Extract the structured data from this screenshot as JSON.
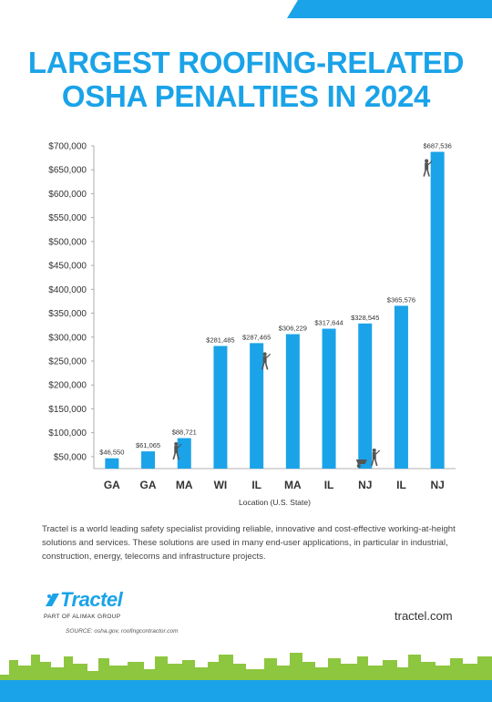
{
  "title_lines": [
    "LARGEST ROOFING-RELATED",
    "OSHA PENALTIES IN 2024"
  ],
  "chart_data": {
    "type": "bar",
    "title": "LARGEST ROOFING-RELATED OSHA PENALTIES IN 2024",
    "xlabel": "Location (U.S. State)",
    "ylabel": "",
    "categories": [
      "GA",
      "GA",
      "MA",
      "WI",
      "IL",
      "MA",
      "IL",
      "NJ",
      "IL",
      "NJ"
    ],
    "values": [
      46550,
      61065,
      88721,
      281485,
      287465,
      306229,
      317644,
      328545,
      365576,
      687536
    ],
    "data_labels": [
      "$46,550",
      "$61,065",
      "$88,721",
      "$281,485",
      "$287,465",
      "$306,229",
      "$317,644",
      "$328,545",
      "$365,576",
      "$687,536"
    ],
    "ylim": [
      25000,
      700000
    ],
    "yticks": [
      50000,
      100000,
      150000,
      200000,
      250000,
      300000,
      350000,
      400000,
      450000,
      500000,
      550000,
      600000,
      650000,
      700000
    ],
    "ytick_labels": [
      "$50,000",
      "$100,000",
      "$150,000",
      "$200,000",
      "$250,000",
      "$300,000",
      "$350,000",
      "$400,000",
      "$450,000",
      "$500,000",
      "$550,000",
      "$600,000",
      "$650,000",
      "$700,000"
    ],
    "grid": false,
    "bar_color": "#1aa3e8"
  },
  "description": "Tractel is a world leading safety specialist providing reliable, innovative and cost-effective working-at-height solutions and services. These solutions are used in many end-user applications, in particular in industrial, construction, energy, telecoms and infrastructure projects.",
  "logo": {
    "name": "Tractel",
    "sub": "PART OF ALIMAK GROUP",
    "icon": "tractel-logo-icon"
  },
  "website": "tractel.com",
  "source": "SOURCE: osha.gov, roofingcontractor.com",
  "colors": {
    "accent": "#1aa3e8",
    "skyline": "#8dc63f",
    "text": "#333333"
  }
}
